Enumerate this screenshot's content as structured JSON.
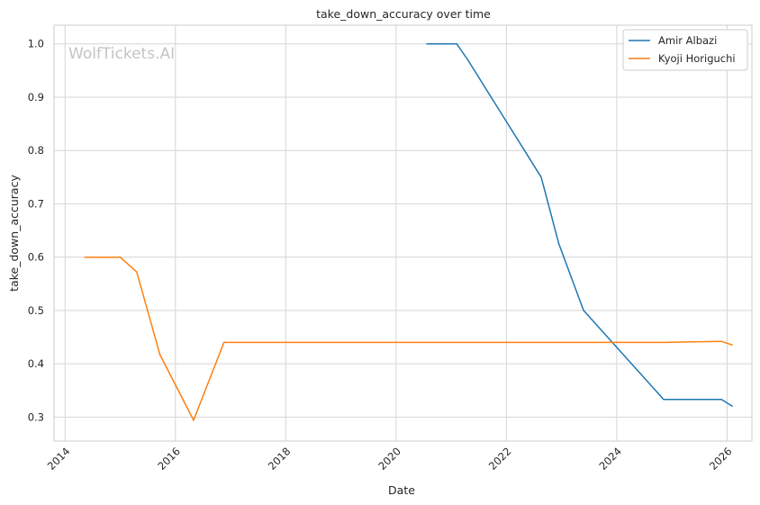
{
  "chart_data": {
    "type": "line",
    "title": "take_down_accuracy over time",
    "xlabel": "Date",
    "ylabel": "take_down_accuracy",
    "watermark": "WolfTickets.AI",
    "x_ticks": [
      "2014",
      "2016",
      "2018",
      "2020",
      "2022",
      "2024",
      "2026"
    ],
    "y_ticks": [
      "0.3",
      "0.4",
      "0.5",
      "0.6",
      "0.7",
      "0.8",
      "0.9",
      "1.0"
    ],
    "xlim": [
      2013.8,
      2026.45
    ],
    "ylim": [
      0.255,
      1.035
    ],
    "grid": true,
    "legend_position": "top-right",
    "series": [
      {
        "name": "Amir Albazi",
        "color": "#1f77b4",
        "points": [
          [
            2020.55,
            1.0
          ],
          [
            2021.1,
            1.0
          ],
          [
            2021.3,
            0.97
          ],
          [
            2022.63,
            0.75
          ],
          [
            2022.95,
            0.625
          ],
          [
            2023.4,
            0.5
          ],
          [
            2024.85,
            0.333
          ],
          [
            2025.9,
            0.333
          ],
          [
            2026.1,
            0.32
          ]
        ]
      },
      {
        "name": "Kyoji Horiguchi",
        "color": "#ff7f0e",
        "points": [
          [
            2014.35,
            0.6
          ],
          [
            2015.0,
            0.6
          ],
          [
            2015.3,
            0.572
          ],
          [
            2015.72,
            0.417
          ],
          [
            2016.33,
            0.294
          ],
          [
            2016.88,
            0.44
          ],
          [
            2024.85,
            0.44
          ],
          [
            2025.9,
            0.442
          ],
          [
            2026.1,
            0.435
          ]
        ]
      }
    ]
  }
}
